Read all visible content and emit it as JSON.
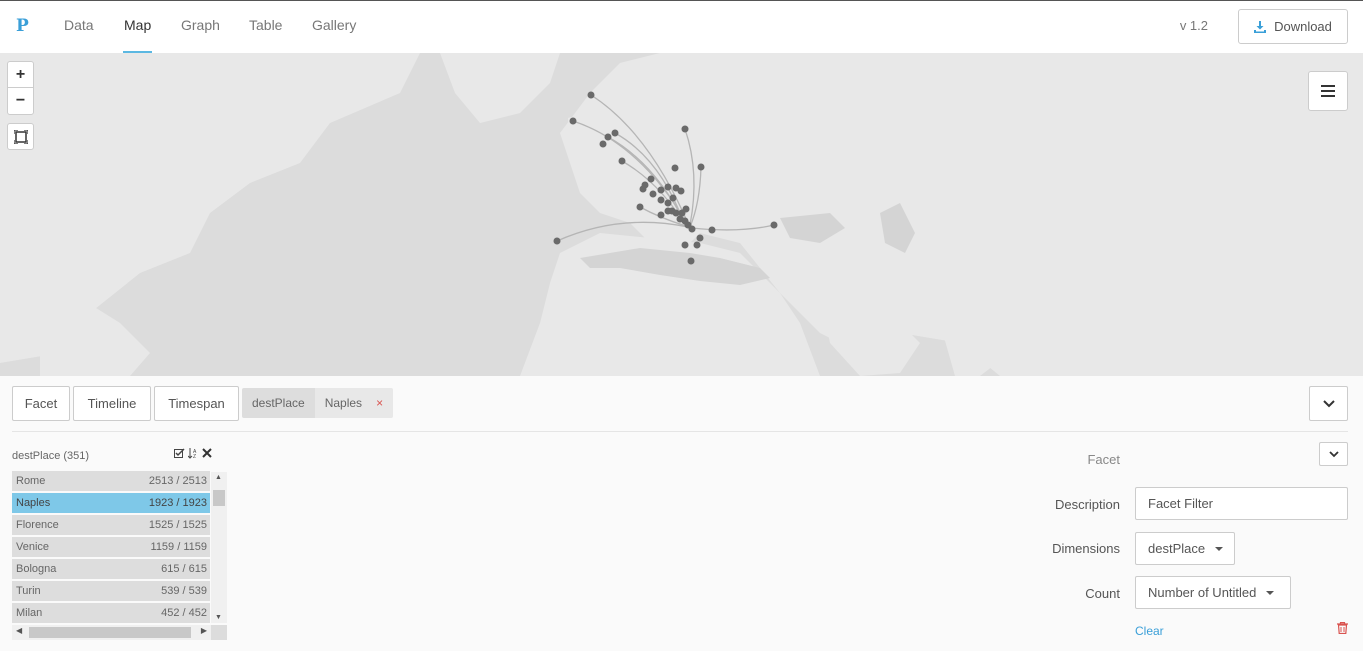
{
  "nav": {
    "logo": "P",
    "tabs": [
      {
        "label": "Data"
      },
      {
        "label": "Map"
      },
      {
        "label": "Graph"
      },
      {
        "label": "Table"
      },
      {
        "label": "Gallery"
      }
    ],
    "active_tab": "Map",
    "version": "v 1.2",
    "download_label": "Download"
  },
  "map": {
    "zoom_in": "+",
    "zoom_out": "−"
  },
  "toolbar": {
    "facet_label": "Facet",
    "timeline_label": "Timeline",
    "timespan_label": "Timespan",
    "filter_key": "destPlace",
    "filter_value": "Naples",
    "filter_remove": "×"
  },
  "facet": {
    "title": "destPlace (351)",
    "rows": [
      {
        "name": "Rome",
        "count": "2513 / 2513",
        "selected": false
      },
      {
        "name": "Naples",
        "count": "1923 / 1923",
        "selected": true
      },
      {
        "name": "Florence",
        "count": "1525 / 1525",
        "selected": false
      },
      {
        "name": "Venice",
        "count": "1159 / 1159",
        "selected": false
      },
      {
        "name": "Bologna",
        "count": "615 / 615",
        "selected": false
      },
      {
        "name": "Turin",
        "count": "539 / 539",
        "selected": false
      },
      {
        "name": "Milan",
        "count": "452 / 452",
        "selected": false
      }
    ]
  },
  "settings": {
    "header": "Facet",
    "description_label": "Description",
    "description_value": "Facet Filter",
    "dimensions_label": "Dimensions",
    "dimensions_value": "destPlace",
    "count_label": "Count",
    "count_value": "Number of Untitled",
    "clear_label": "Clear"
  },
  "colors": {
    "accent": "#5bb8e2",
    "selected_row": "#7ec8e8",
    "map_land": "#e8e8e8",
    "map_water": "#dcdcdc",
    "points": "#666666",
    "danger": "#d9534f"
  }
}
